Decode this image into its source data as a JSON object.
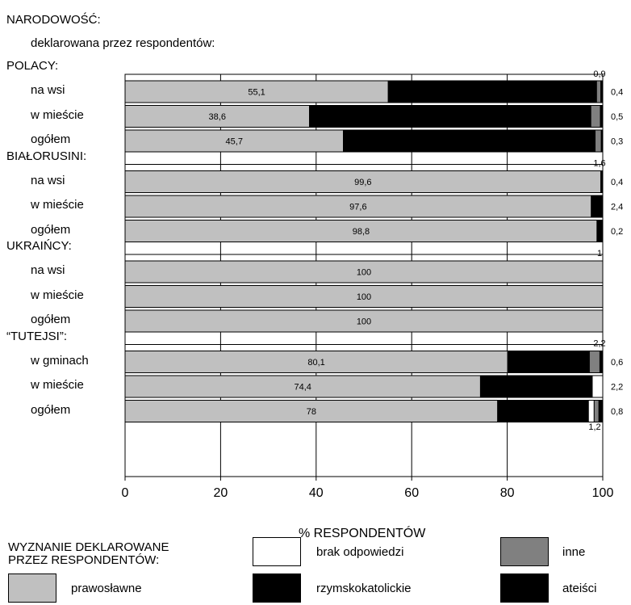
{
  "chart_data": {
    "type": "bar",
    "orientation": "horizontal",
    "stacked": true,
    "title": "NARODOWOŚĆ:",
    "subtitle": "deklarowana przez respondentów:",
    "xlabel": "% RESPONDENTÓW",
    "xlim": [
      0,
      100
    ],
    "xticks": [
      "0",
      "20",
      "40",
      "60",
      "80",
      "100"
    ],
    "grid": true,
    "colors": {
      "prawoslawne": "#c0c0c0",
      "rzymskokatolickie": "#000000",
      "brak": "#ffffff",
      "inne": "#808080",
      "ateisci": "#000000",
      "border": "#000000"
    },
    "groups": [
      {
        "name": "POLACY:",
        "top_note": "0,9",
        "bottom_note": "",
        "rows": [
          {
            "label": "na wsi",
            "prawoslawne": 55.1,
            "rzymskokatolickie": 43.6,
            "brak": 0,
            "inne": 0.9,
            "ateisci": 0.4,
            "value_label": "55,1",
            "side_label": "0,4"
          },
          {
            "label": "w mieście",
            "prawoslawne": 38.6,
            "rzymskokatolickie": 58.9,
            "brak": 0,
            "inne": 2.0,
            "ateisci": 0.5,
            "value_label": "38,6",
            "side_label": "0,5"
          },
          {
            "label": "ogółem",
            "prawoslawne": 45.7,
            "rzymskokatolickie": 52.7,
            "brak": 0,
            "inne": 1.3,
            "ateisci": 0.3,
            "value_label": "45,7",
            "side_label": "0,3"
          }
        ]
      },
      {
        "name": "BIAŁORUSINI:",
        "top_note": "1,6",
        "bottom_note": "",
        "rows": [
          {
            "label": "na wsi",
            "prawoslawne": 99.6,
            "rzymskokatolickie": 0.4,
            "brak": 0,
            "inne": 0,
            "ateisci": 0,
            "value_label": "99,6",
            "side_label": "0,4"
          },
          {
            "label": "w mieście",
            "prawoslawne": 97.6,
            "rzymskokatolickie": 2.4,
            "brak": 0,
            "inne": 0,
            "ateisci": 0,
            "value_label": "97,6",
            "side_label": "2,4"
          },
          {
            "label": "ogółem",
            "prawoslawne": 98.8,
            "rzymskokatolickie": 1.0,
            "brak": 0,
            "inne": 0,
            "ateisci": 0.2,
            "value_label": "98,8",
            "side_label": "0,2"
          }
        ]
      },
      {
        "name": "UKRAIŃCY:",
        "top_note": "1",
        "bottom_note": "",
        "rows": [
          {
            "label": "na wsi",
            "prawoslawne": 100,
            "rzymskokatolickie": 0,
            "brak": 0,
            "inne": 0,
            "ateisci": 0,
            "value_label": "100",
            "side_label": ""
          },
          {
            "label": "w mieście",
            "prawoslawne": 100,
            "rzymskokatolickie": 0,
            "brak": 0,
            "inne": 0,
            "ateisci": 0,
            "value_label": "100",
            "side_label": ""
          },
          {
            "label": "ogółem",
            "prawoslawne": 100,
            "rzymskokatolickie": 0,
            "brak": 0,
            "inne": 0,
            "ateisci": 0,
            "value_label": "100",
            "side_label": ""
          }
        ]
      },
      {
        "name": "“TUTEJSI”:",
        "top_note": "2,2",
        "bottom_note": "1,2",
        "rows": [
          {
            "label": "w gminach",
            "prawoslawne": 80.1,
            "rzymskokatolickie": 17.1,
            "brak": 0,
            "inne": 2.2,
            "ateisci": 0.6,
            "value_label": "80,1",
            "side_label": "0,6"
          },
          {
            "label": "w mieście",
            "prawoslawne": 74.4,
            "rzymskokatolickie": 23.4,
            "brak": 2.2,
            "inne": 0,
            "ateisci": 0,
            "value_label": "74,4",
            "side_label": "2,2"
          },
          {
            "label": "ogółem",
            "prawoslawne": 78,
            "rzymskokatolickie": 19.0,
            "brak": 1.2,
            "inne": 1.0,
            "ateisci": 0.8,
            "value_label": "78",
            "side_label": "0,8"
          }
        ]
      }
    ],
    "legend": {
      "title_line1": "WYZNANIE DEKLAROWANE",
      "title_line2": "PRZEZ RESPONDENTÓW:",
      "items": [
        {
          "key": "prawoslawne",
          "label": "prawosławne"
        },
        {
          "key": "brak",
          "label": "brak odpowiedzi"
        },
        {
          "key": "rzymskokatolickie",
          "label": "rzymskokatolickie"
        },
        {
          "key": "inne",
          "label": "inne"
        },
        {
          "key": "ateisci",
          "label": "ateiści"
        }
      ]
    }
  }
}
